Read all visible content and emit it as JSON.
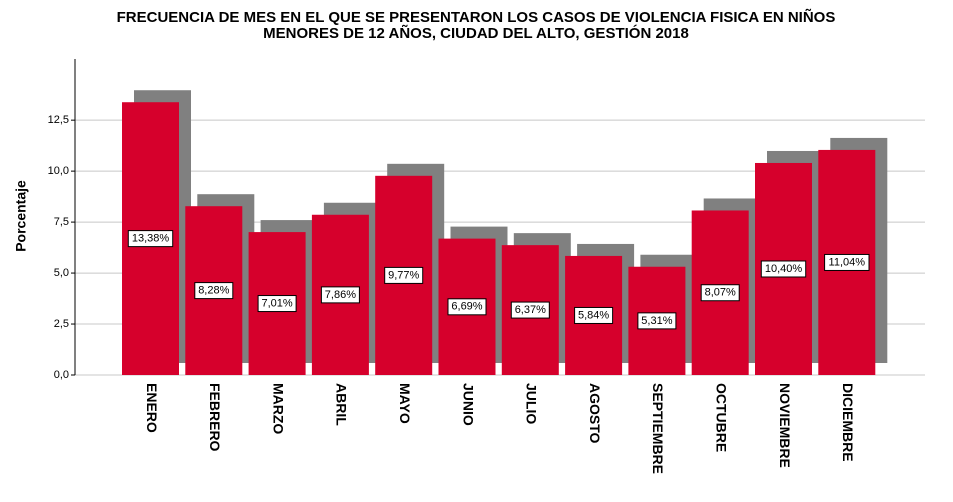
{
  "chart_data": {
    "type": "bar",
    "title": [
      "FRECUENCIA DE MES EN EL QUE SE PRESENTARON LOS CASOS DE VIOLENCIA FISICA EN NIÑOS",
      "MENORES DE 12 AÑOS, CIUDAD DEL ALTO, GESTIÓN 2018"
    ],
    "y_label": "Porcentaje",
    "categories": [
      "ENERO",
      "FEBRERO",
      "MARZO",
      "ABRIL",
      "MAYO",
      "JUNIO",
      "JULIO",
      "AGOSTO",
      "SEPTIEMBRE",
      "OCTUBRE",
      "NOVIEMBRE",
      "DICIEMBRE"
    ],
    "values": [
      13.38,
      8.28,
      7.01,
      7.86,
      9.77,
      6.69,
      6.37,
      5.84,
      5.31,
      8.07,
      10.4,
      11.04
    ],
    "value_labels": [
      "13,38%",
      "8,28%",
      "7,01%",
      "7,86%",
      "9,77%",
      "6,69%",
      "6,37%",
      "5,84%",
      "5,31%",
      "8,07%",
      "10,40%",
      "11,04%"
    ],
    "color": "#d6002c",
    "shadow_color": "#808080",
    "ylim": [
      0,
      15.5
    ],
    "yticks": [
      {
        "value": 0,
        "label": "0,0"
      },
      {
        "value": 2.5,
        "label": "2,5"
      },
      {
        "value": 5,
        "label": "5,0"
      },
      {
        "value": 7.5,
        "label": "7,5"
      },
      {
        "value": 10,
        "label": "10,0"
      },
      {
        "value": 12.5,
        "label": "12,5"
      }
    ],
    "grid": true
  }
}
